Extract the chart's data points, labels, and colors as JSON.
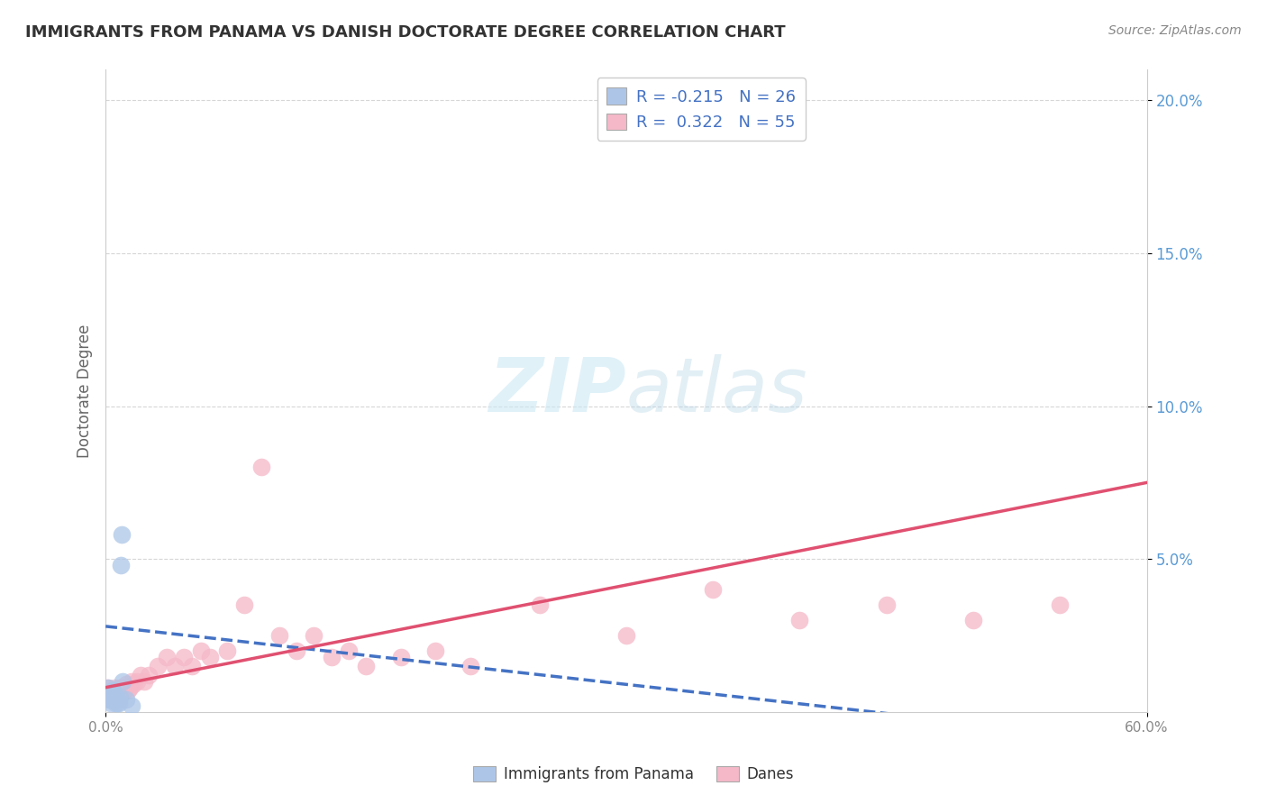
{
  "title": "IMMIGRANTS FROM PANAMA VS DANISH DOCTORATE DEGREE CORRELATION CHART",
  "source": "Source: ZipAtlas.com",
  "ylabel": "Doctorate Degree",
  "xlim": [
    0,
    60
  ],
  "ylim": [
    0,
    21
  ],
  "ytick_vals": [
    5,
    10,
    15,
    20
  ],
  "ytick_labels": [
    "5.0%",
    "10.0%",
    "15.0%",
    "20.0%"
  ],
  "xtick_vals": [
    0,
    60
  ],
  "xtick_labels": [
    "0.0%",
    "60.0%"
  ],
  "legend_line1": "R = -0.215   N = 26",
  "legend_line2": "R =  0.322   N = 55",
  "blue_color": "#adc6e8",
  "pink_color": "#f5b8c8",
  "blue_line_color": "#4472c4",
  "pink_line_color": "#e05070",
  "title_color": "#333333",
  "source_color": "#888888",
  "ytick_color": "#5b9bd5",
  "xtick_color": "#888888",
  "ylabel_color": "#666666",
  "watermark_color": "#cce8f4",
  "grid_color": "#cccccc",
  "background_color": "#ffffff",
  "blue_x": [
    0.15,
    0.18,
    0.2,
    0.25,
    0.28,
    0.3,
    0.32,
    0.35,
    0.38,
    0.4,
    0.42,
    0.45,
    0.48,
    0.5,
    0.55,
    0.58,
    0.6,
    0.65,
    0.7,
    0.75,
    0.8,
    0.85,
    0.9,
    1.0,
    1.2,
    1.5
  ],
  "blue_y": [
    0.8,
    0.5,
    0.4,
    0.6,
    0.3,
    0.5,
    0.4,
    0.6,
    0.5,
    0.7,
    0.4,
    0.6,
    0.5,
    0.4,
    0.3,
    0.5,
    0.4,
    0.3,
    0.4,
    0.3,
    0.5,
    4.8,
    5.8,
    1.0,
    0.4,
    0.2
  ],
  "pink_x": [
    0.1,
    0.15,
    0.2,
    0.25,
    0.3,
    0.35,
    0.4,
    0.45,
    0.5,
    0.55,
    0.6,
    0.65,
    0.7,
    0.75,
    0.8,
    0.85,
    0.9,
    0.95,
    1.0,
    1.1,
    1.2,
    1.3,
    1.4,
    1.5,
    1.6,
    1.8,
    2.0,
    2.2,
    2.5,
    3.0,
    3.5,
    4.0,
    4.5,
    5.0,
    5.5,
    6.0,
    7.0,
    8.0,
    9.0,
    10.0,
    11.0,
    12.0,
    13.0,
    14.0,
    15.0,
    17.0,
    19.0,
    21.0,
    25.0,
    30.0,
    35.0,
    40.0,
    45.0,
    50.0,
    55.0
  ],
  "pink_y": [
    0.8,
    0.5,
    0.6,
    0.4,
    0.5,
    0.6,
    0.5,
    0.7,
    0.8,
    0.6,
    0.5,
    0.7,
    0.6,
    0.5,
    0.8,
    0.6,
    0.7,
    0.6,
    0.8,
    0.7,
    0.9,
    0.7,
    0.8,
    1.0,
    0.9,
    1.0,
    1.2,
    1.0,
    1.2,
    1.5,
    1.8,
    1.5,
    1.8,
    1.5,
    2.0,
    1.8,
    2.0,
    3.5,
    8.0,
    2.5,
    2.0,
    2.5,
    1.8,
    2.0,
    1.5,
    1.8,
    2.0,
    1.5,
    3.5,
    2.5,
    4.0,
    3.0,
    3.5,
    3.0,
    3.5
  ],
  "blue_trend_x": [
    0,
    60
  ],
  "blue_trend_y_start": 2.8,
  "blue_trend_y_end": -1.0,
  "pink_trend_x": [
    0,
    60
  ],
  "pink_trend_y_start": 0.8,
  "pink_trend_y_end": 7.5
}
